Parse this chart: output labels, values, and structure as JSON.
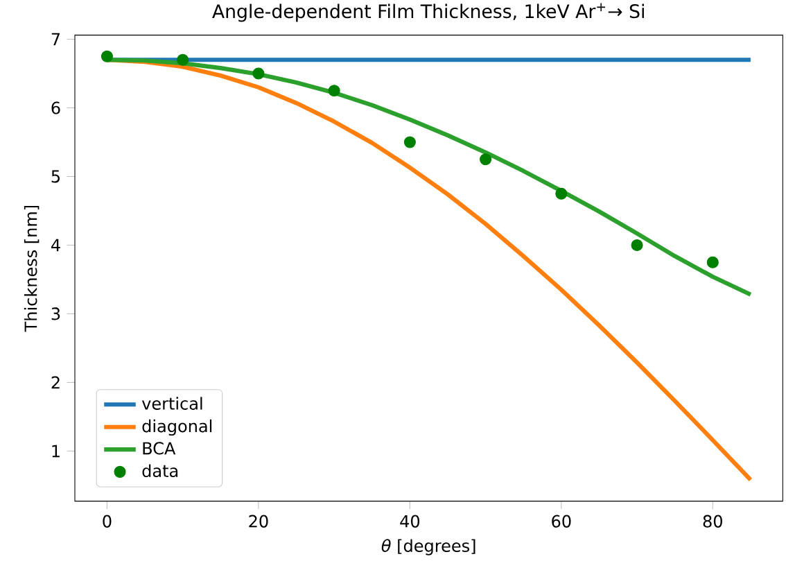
{
  "chart_data": {
    "type": "line",
    "title": "Angle-dependent Film Thickness, 1keV Ar$^{+}$→ Si",
    "xlabel": "*θ* [degrees]",
    "ylabel": "Thickness [nm]",
    "xlim": [
      -4.25,
      89.25
    ],
    "ylim": [
      0.27,
      7.06
    ],
    "xticks": [
      0,
      20,
      40,
      60,
      80
    ],
    "yticks": [
      1,
      2,
      3,
      4,
      5,
      6,
      7
    ],
    "legend": "bottom left",
    "series": [
      {
        "name": "vertical",
        "color": "#1f77b4",
        "x": [
          0,
          85
        ],
        "values": [
          6.7,
          6.7
        ]
      },
      {
        "name": "diagonal",
        "color": "#ff7f0e",
        "x": [
          0,
          5,
          10,
          15,
          20,
          25,
          30,
          35,
          40,
          45,
          50,
          55,
          60,
          65,
          70,
          75,
          80,
          85
        ],
        "values": [
          6.7,
          6.67,
          6.6,
          6.47,
          6.3,
          6.07,
          5.8,
          5.49,
          5.13,
          4.74,
          4.31,
          3.84,
          3.35,
          2.83,
          2.29,
          1.73,
          1.16,
          0.58
        ]
      },
      {
        "name": "BCA",
        "color": "#2ca02c",
        "x": [
          0,
          5,
          10,
          15,
          20,
          25,
          30,
          35,
          40,
          45,
          50,
          55,
          60,
          65,
          70,
          75,
          80,
          85
        ],
        "values": [
          6.7,
          6.69,
          6.65,
          6.58,
          6.49,
          6.37,
          6.22,
          6.04,
          5.83,
          5.6,
          5.35,
          5.08,
          4.79,
          4.49,
          4.17,
          3.84,
          3.54,
          3.28
        ]
      },
      {
        "name": "data",
        "type": "scatter",
        "color": "#008000",
        "x": [
          0,
          10,
          20,
          30,
          40,
          50,
          60,
          70,
          80
        ],
        "values": [
          6.75,
          6.7,
          6.5,
          6.25,
          5.5,
          5.25,
          4.75,
          4.0,
          3.75
        ]
      }
    ]
  }
}
